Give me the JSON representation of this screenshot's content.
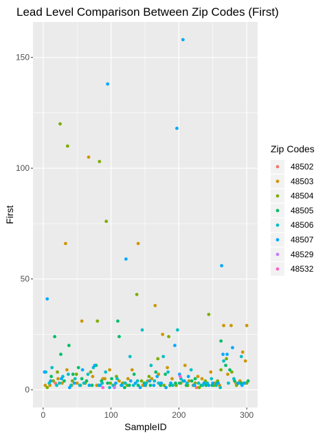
{
  "chart_data": {
    "type": "scatter",
    "title": "Lead Level Comparison Between Zip Codes (First)",
    "xlabel": "SampleID",
    "ylabel": "First",
    "xlim": [
      -15,
      316
    ],
    "ylim": [
      -8,
      166
    ],
    "x_ticks": [
      0,
      100,
      200,
      300
    ],
    "y_ticks": [
      0,
      50,
      100,
      150
    ],
    "grid": true,
    "legend_title": "Zip Codes",
    "legend_position": "right",
    "series": [
      {
        "name": "48502",
        "color": "#F8766D",
        "points": [
          [
            18,
            3
          ],
          [
            104,
            2
          ],
          [
            226,
            1
          ]
        ]
      },
      {
        "name": "48503",
        "color": "#CD9600",
        "points": [
          [
            3,
            2
          ],
          [
            10,
            2
          ],
          [
            22,
            5
          ],
          [
            28,
            3
          ],
          [
            33,
            66
          ],
          [
            35,
            9
          ],
          [
            42,
            2
          ],
          [
            50,
            3
          ],
          [
            57,
            31
          ],
          [
            62,
            3
          ],
          [
            67,
            105
          ],
          [
            73,
            6
          ],
          [
            79,
            2
          ],
          [
            88,
            5
          ],
          [
            91,
            5
          ],
          [
            98,
            9
          ],
          [
            105,
            2
          ],
          [
            112,
            4
          ],
          [
            118,
            3
          ],
          [
            125,
            5
          ],
          [
            131,
            9
          ],
          [
            140,
            66
          ],
          [
            147,
            2
          ],
          [
            154,
            4
          ],
          [
            160,
            5
          ],
          [
            165,
            38
          ],
          [
            170,
            7
          ],
          [
            176,
            25
          ],
          [
            183,
            10
          ],
          [
            190,
            5
          ],
          [
            196,
            2
          ],
          [
            203,
            3
          ],
          [
            209,
            11
          ],
          [
            215,
            4
          ],
          [
            221,
            2
          ],
          [
            228,
            6
          ],
          [
            234,
            5
          ],
          [
            241,
            3
          ],
          [
            247,
            8
          ],
          [
            253,
            3
          ],
          [
            260,
            2
          ],
          [
            266,
            29
          ],
          [
            272,
            7
          ],
          [
            277,
            29
          ],
          [
            284,
            3
          ],
          [
            290,
            4
          ],
          [
            294,
            17
          ],
          [
            298,
            13
          ],
          [
            300,
            29
          ]
        ]
      },
      {
        "name": "48504",
        "color": "#7CAE00",
        "points": [
          [
            6,
            1
          ],
          [
            15,
            4
          ],
          [
            21,
            8
          ],
          [
            25,
            120
          ],
          [
            36,
            110
          ],
          [
            43,
            4
          ],
          [
            49,
            7
          ],
          [
            55,
            2
          ],
          [
            62,
            3
          ],
          [
            70,
            8
          ],
          [
            80,
            31
          ],
          [
            83,
            103
          ],
          [
            93,
            76
          ],
          [
            99,
            3
          ],
          [
            108,
            6
          ],
          [
            117,
            3
          ],
          [
            124,
            2
          ],
          [
            138,
            43
          ],
          [
            145,
            4
          ],
          [
            151,
            2
          ],
          [
            156,
            6
          ],
          [
            169,
            14
          ],
          [
            178,
            2
          ],
          [
            185,
            24
          ],
          [
            196,
            2
          ],
          [
            213,
            2
          ],
          [
            224,
            3
          ],
          [
            230,
            1
          ],
          [
            239,
            4
          ],
          [
            244,
            34
          ],
          [
            252,
            2
          ],
          [
            257,
            4
          ],
          [
            262,
            9
          ],
          [
            270,
            14
          ],
          [
            278,
            8
          ],
          [
            285,
            2
          ],
          [
            292,
            3
          ],
          [
            300,
            3
          ]
        ]
      },
      {
        "name": "48505",
        "color": "#00BE67",
        "points": [
          [
            12,
            6
          ],
          [
            17,
            24
          ],
          [
            26,
            16
          ],
          [
            31,
            4
          ],
          [
            38,
            20
          ],
          [
            44,
            7
          ],
          [
            52,
            10
          ],
          [
            57,
            5
          ],
          [
            64,
            4
          ],
          [
            72,
            2
          ],
          [
            78,
            11
          ],
          [
            86,
            4
          ],
          [
            95,
            3
          ],
          [
            101,
            5
          ],
          [
            110,
            31
          ],
          [
            112,
            24
          ],
          [
            120,
            1
          ],
          [
            127,
            2
          ],
          [
            134,
            7
          ],
          [
            140,
            2
          ],
          [
            149,
            3
          ],
          [
            158,
            2
          ],
          [
            166,
            8
          ],
          [
            173,
            2
          ],
          [
            180,
            7
          ],
          [
            187,
            2
          ],
          [
            195,
            3
          ],
          [
            201,
            3
          ],
          [
            211,
            2
          ],
          [
            219,
            4
          ],
          [
            224,
            5
          ],
          [
            233,
            2
          ],
          [
            240,
            2
          ],
          [
            249,
            2
          ],
          [
            256,
            3
          ],
          [
            262,
            22
          ],
          [
            269,
            11
          ],
          [
            275,
            9
          ],
          [
            282,
            4
          ],
          [
            291,
            3
          ],
          [
            302,
            4
          ]
        ]
      },
      {
        "name": "48506",
        "color": "#00BFC4",
        "points": [
          [
            4,
            8
          ],
          [
            9,
            3
          ],
          [
            13,
            10
          ],
          [
            20,
            2
          ],
          [
            24,
            3
          ],
          [
            29,
            6
          ],
          [
            37,
            7
          ],
          [
            41,
            2
          ],
          [
            47,
            5
          ],
          [
            54,
            2
          ],
          [
            60,
            3
          ],
          [
            66,
            7
          ],
          [
            74,
            10
          ],
          [
            82,
            2
          ],
          [
            87,
            3
          ],
          [
            92,
            8
          ],
          [
            98,
            1
          ],
          [
            103,
            2
          ],
          [
            109,
            5
          ],
          [
            115,
            2
          ],
          [
            121,
            3
          ],
          [
            128,
            15
          ],
          [
            133,
            2
          ],
          [
            139,
            4
          ],
          [
            146,
            27
          ],
          [
            152,
            3
          ],
          [
            159,
            11
          ],
          [
            164,
            4
          ],
          [
            170,
            3
          ],
          [
            177,
            15
          ],
          [
            184,
            8
          ],
          [
            191,
            2
          ],
          [
            198,
            27
          ],
          [
            203,
            5
          ],
          [
            206,
            4
          ],
          [
            212,
            3
          ],
          [
            218,
            9
          ],
          [
            223,
            2
          ],
          [
            229,
            3
          ],
          [
            235,
            2
          ],
          [
            242,
            3
          ],
          [
            248,
            5
          ],
          [
            255,
            2
          ],
          [
            261,
            1
          ],
          [
            266,
            13
          ],
          [
            273,
            3
          ],
          [
            281,
            5
          ],
          [
            288,
            3
          ],
          [
            292,
            15
          ],
          [
            297,
            3
          ]
        ]
      },
      {
        "name": "48507",
        "color": "#00A9FF",
        "points": [
          [
            2,
            8
          ],
          [
            6,
            41
          ],
          [
            11,
            4
          ],
          [
            27,
            5
          ],
          [
            39,
            1
          ],
          [
            46,
            3
          ],
          [
            58,
            9
          ],
          [
            68,
            2
          ],
          [
            76,
            11
          ],
          [
            84,
            2
          ],
          [
            95,
            138
          ],
          [
            107,
            3
          ],
          [
            116,
            2
          ],
          [
            122,
            59
          ],
          [
            129,
            4
          ],
          [
            136,
            3
          ],
          [
            143,
            1
          ],
          [
            150,
            2
          ],
          [
            157,
            4
          ],
          [
            163,
            2
          ],
          [
            168,
            6
          ],
          [
            174,
            3
          ],
          [
            181,
            1
          ],
          [
            188,
            3
          ],
          [
            194,
            20
          ],
          [
            197,
            118
          ],
          [
            201,
            7
          ],
          [
            206,
            158
          ],
          [
            208,
            4
          ],
          [
            214,
            6
          ],
          [
            222,
            2
          ],
          [
            237,
            3
          ],
          [
            244,
            2
          ],
          [
            250,
            3
          ],
          [
            258,
            3
          ],
          [
            263,
            56
          ],
          [
            265,
            16
          ],
          [
            271,
            16
          ],
          [
            279,
            19
          ],
          [
            287,
            3
          ],
          [
            293,
            2
          ],
          [
            296,
            3
          ]
        ]
      },
      {
        "name": "48529",
        "color": "#C77CFF",
        "points": [
          [
            105,
            1
          ]
        ]
      },
      {
        "name": "48532",
        "color": "#FF61CC",
        "points": [
          [
            88,
            1
          ],
          [
            202,
            6
          ]
        ]
      }
    ]
  }
}
